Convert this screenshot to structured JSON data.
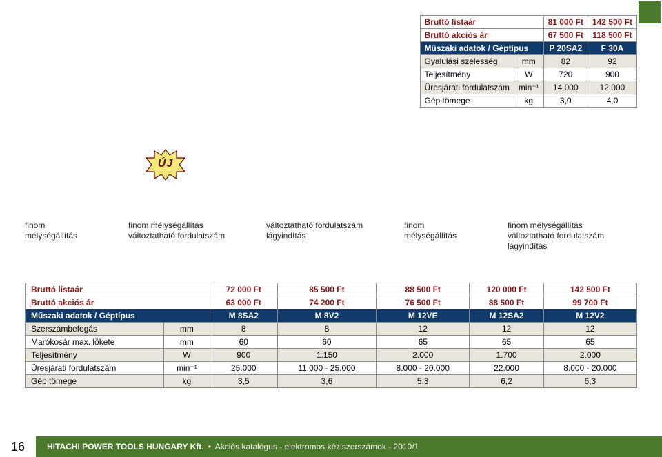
{
  "colors": {
    "header_bg": "#0f3a6a",
    "header_text": "#ffffff",
    "alt_row_bg": "#e8e6dc",
    "price_text": "#8a1818",
    "border": "#8a8a8a",
    "footer_bg": "#4a7a2a"
  },
  "uj_badge": {
    "text": "ÚJ",
    "stroke": "#6a0d0d",
    "fill": "#f3e97a"
  },
  "top_table": {
    "cols": [
      "P 20SA2",
      "F 30A"
    ],
    "list_row": {
      "label": "Bruttó listaár",
      "values": [
        "81 000 Ft",
        "142 500 Ft"
      ]
    },
    "action_row": {
      "label": "Bruttó akciós ár",
      "values": [
        "67 500 Ft",
        "118 500 Ft"
      ]
    },
    "header_row": {
      "label": "Műszaki adatok / Géptípus",
      "values": [
        "P 20SA2",
        "F 30A"
      ]
    },
    "rows": [
      {
        "label": "Gyalulási szélesség",
        "unit": "mm",
        "values": [
          "82",
          "92"
        ],
        "alt": true
      },
      {
        "label": "Teljesítmény",
        "unit": "W",
        "values": [
          "720",
          "900"
        ],
        "alt": false
      },
      {
        "label": "Üresjárati fordulatszám",
        "unit": "min⁻¹",
        "values": [
          "14.000",
          "12.000"
        ],
        "alt": true
      },
      {
        "label": "Gép tömege",
        "unit": "kg",
        "values": [
          "3,0",
          "4,0"
        ],
        "alt": false
      }
    ]
  },
  "captions": [
    "finom\nmélységállítás",
    "finom mélységállítás\nváltoztatható fordulatszám",
    "változtatható fordulatszám\nlágyindítás",
    "finom\nmélységállítás",
    "finom mélységállítás\nváltoztatható fordulatszám\nlágyindítás"
  ],
  "bottom_table": {
    "list_row": {
      "label": "Bruttó listaár",
      "values": [
        "72 000 Ft",
        "85 500 Ft",
        "88 500 Ft",
        "120 000 Ft",
        "142 500 Ft"
      ]
    },
    "action_row": {
      "label": "Bruttó akciós ár",
      "values": [
        "63 000 Ft",
        "74 200 Ft",
        "76 500 Ft",
        "88 500 Ft",
        "99 700 Ft"
      ]
    },
    "header_row": {
      "label": "Műszaki adatok / Géptípus",
      "values": [
        "M 8SA2",
        "M 8V2",
        "M 12VE",
        "M 12SA2",
        "M 12V2"
      ]
    },
    "rows": [
      {
        "label": "Szerszámbefogás",
        "unit": "mm",
        "values": [
          "8",
          "8",
          "12",
          "12",
          "12"
        ],
        "alt": true
      },
      {
        "label": "Marókosár max. lökete",
        "unit": "mm",
        "values": [
          "60",
          "60",
          "65",
          "65",
          "65"
        ],
        "alt": false
      },
      {
        "label": "Teljesítmény",
        "unit": "W",
        "values": [
          "900",
          "1.150",
          "2.000",
          "1.700",
          "2.000"
        ],
        "alt": true
      },
      {
        "label": "Üresjárati fordulatszám",
        "unit": "min⁻¹",
        "values": [
          "25.000",
          "11.000 - 25.000",
          "8.000 - 20.000",
          "22.000",
          "8.000 - 20.000"
        ],
        "alt": false
      },
      {
        "label": "Gép tömege",
        "unit": "kg",
        "values": [
          "3,5",
          "3,6",
          "5,3",
          "6,2",
          "6,3"
        ],
        "alt": true
      }
    ]
  },
  "footer": {
    "page_number": "16",
    "company": "HITACHI POWER TOOLS HUNGARY Kft.",
    "tagline": "Akciós katalógus - elektromos kéziszerszámok -  2010/1"
  }
}
